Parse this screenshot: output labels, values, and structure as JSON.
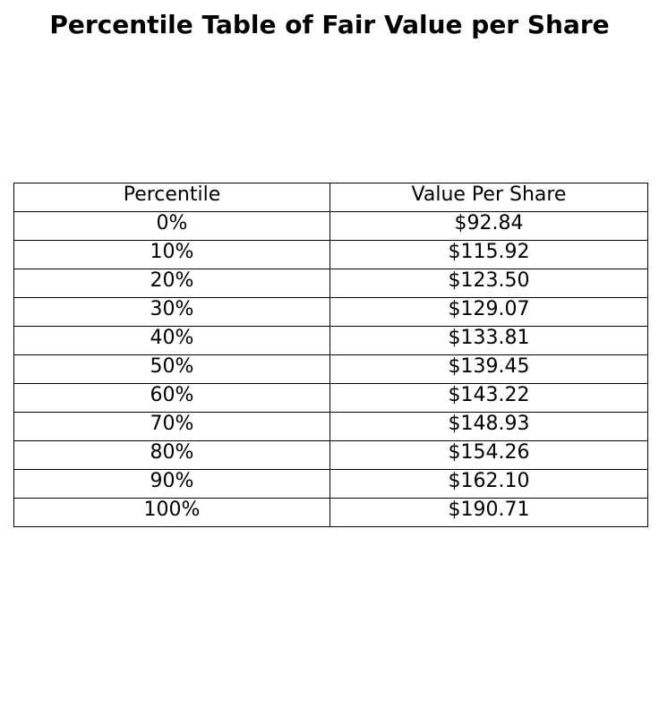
{
  "chart_data": {
    "type": "table",
    "title": "Percentile Table of Fair Value per Share",
    "columns": [
      "Percentile",
      "Value Per Share"
    ],
    "rows": [
      [
        "0%",
        "$92.84"
      ],
      [
        "10%",
        "$115.92"
      ],
      [
        "20%",
        "$123.50"
      ],
      [
        "30%",
        "$129.07"
      ],
      [
        "40%",
        "$133.81"
      ],
      [
        "50%",
        "$139.45"
      ],
      [
        "60%",
        "$143.22"
      ],
      [
        "70%",
        "$148.93"
      ],
      [
        "80%",
        "$154.26"
      ],
      [
        "90%",
        "$162.10"
      ],
      [
        "100%",
        "$190.71"
      ]
    ]
  }
}
